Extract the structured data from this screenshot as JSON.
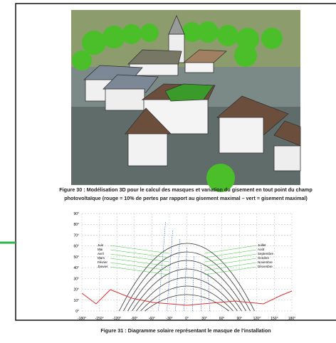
{
  "figure30": {
    "caption_line1": "Figure 30 : Modélisation 3D pour le calcul des masques et variation du gisement en tout point du champ",
    "caption_line2": "photovoltaïque (rouge = 10% de pertes par rapport au gisement maximal – vert = gisement maximal)"
  },
  "figure31": {
    "caption": "Figure 31 : Diagramme solaire représentant le masque de l'installation",
    "y_labels": [
      "90°",
      "80°",
      "70°",
      "60°",
      "50°",
      "40°",
      "30°",
      "20°",
      "10°",
      "0°"
    ],
    "x_labels": [
      "-180°",
      "-150°",
      "-120°",
      "-90°",
      "-60°",
      "-30°",
      "0°",
      "30°",
      "60°",
      "90°",
      "120°",
      "150°",
      "180°"
    ],
    "left_months": [
      "Juin",
      "Mai",
      "Avril",
      "Mars",
      "Février",
      "Janvier"
    ],
    "right_months": [
      "Juillet",
      "Août",
      "Septembre",
      "Octobre",
      "Novembre",
      "Décembre"
    ]
  }
}
